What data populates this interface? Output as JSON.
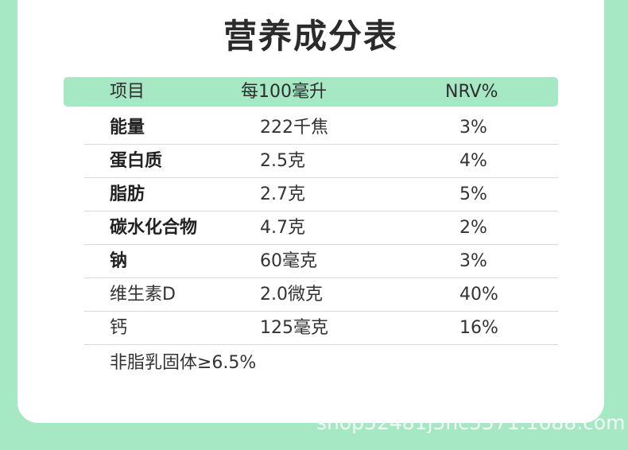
{
  "title": "营养成分表",
  "header": {
    "col1": "项目",
    "col2": "每100毫升",
    "col3": "NRV%"
  },
  "rows": [
    {
      "item": "能量",
      "value": "222千焦",
      "nrv": "3%"
    },
    {
      "item": "蛋白质",
      "value": "2.5克",
      "nrv": "4%"
    },
    {
      "item": "脂肪",
      "value": "2.7克",
      "nrv": "5%"
    },
    {
      "item": "碳水化合物",
      "value": "4.7克",
      "nrv": "2%"
    },
    {
      "item": "钠",
      "value": "60毫克",
      "nrv": "3%"
    },
    {
      "item": "维生素D",
      "value": "2.0微克",
      "nrv": "40%"
    },
    {
      "item": "钙",
      "value": "125毫克",
      "nrv": "16%"
    }
  ],
  "footnote": "非脂乳固体≥6.5%",
  "watermark": "shop52481j5nc5571.1688.com",
  "colors": {
    "accent_green": "#a6e8c4",
    "card_bg": "#ffffff",
    "text": "#333333"
  }
}
